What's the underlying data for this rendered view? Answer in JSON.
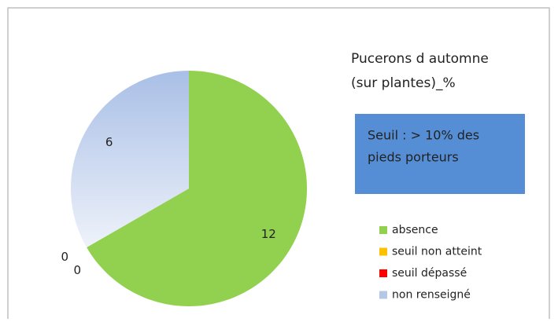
{
  "chart_data": {
    "type": "pie",
    "title": [
      "Pucerons d automne",
      "(sur plantes)_%"
    ],
    "annotation": [
      "Seuil : > 10% des",
      "pieds porteurs"
    ],
    "categories": [
      "absence",
      "seuil non atteint",
      "seuil dépassé",
      "non renseigné"
    ],
    "values": [
      12,
      0,
      0,
      6
    ],
    "colors": [
      "#92d050",
      "#ffc000",
      "#ff0000",
      "#b4c7e7"
    ],
    "annotation_color": "#558ed5",
    "legend": "right"
  }
}
